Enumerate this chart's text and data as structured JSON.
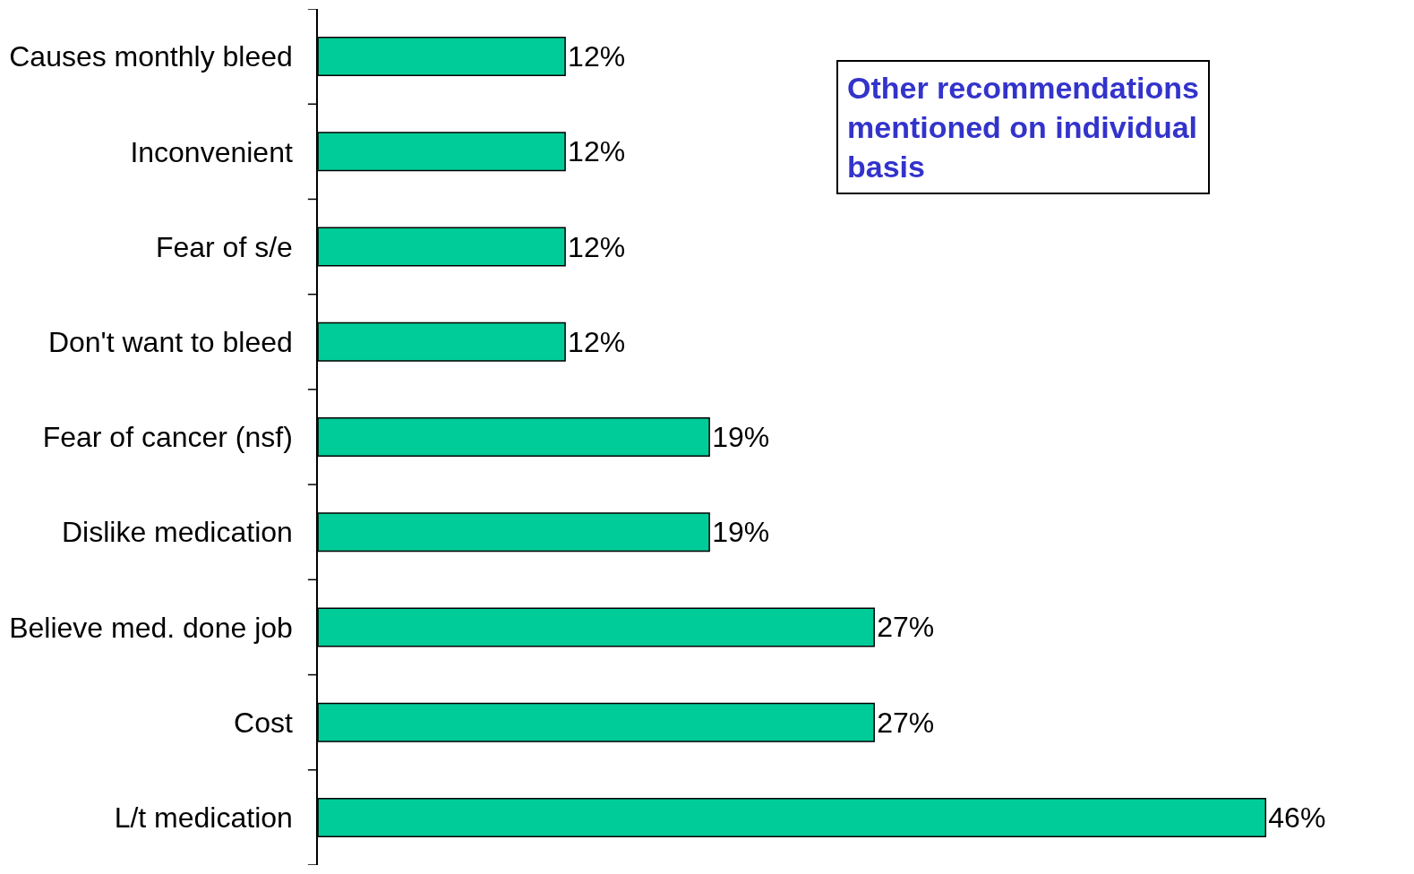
{
  "chart_data": {
    "type": "bar",
    "orientation": "horizontal",
    "categories": [
      "Causes monthly bleed",
      "Inconvenient",
      "Fear of s/e",
      "Don't want to bleed",
      "Fear of cancer (nsf)",
      "Dislike medication",
      "Believe med. done job",
      "Cost",
      "L/t medication"
    ],
    "values": [
      12,
      12,
      12,
      12,
      19,
      19,
      27,
      27,
      46
    ],
    "value_labels": [
      "12%",
      "12%",
      "12%",
      "12%",
      "19%",
      "19%",
      "27%",
      "27%",
      "46%"
    ],
    "color": "#00cc99",
    "annotations": [
      "Other recommendations mentioned on individual basis"
    ],
    "legend": false
  }
}
